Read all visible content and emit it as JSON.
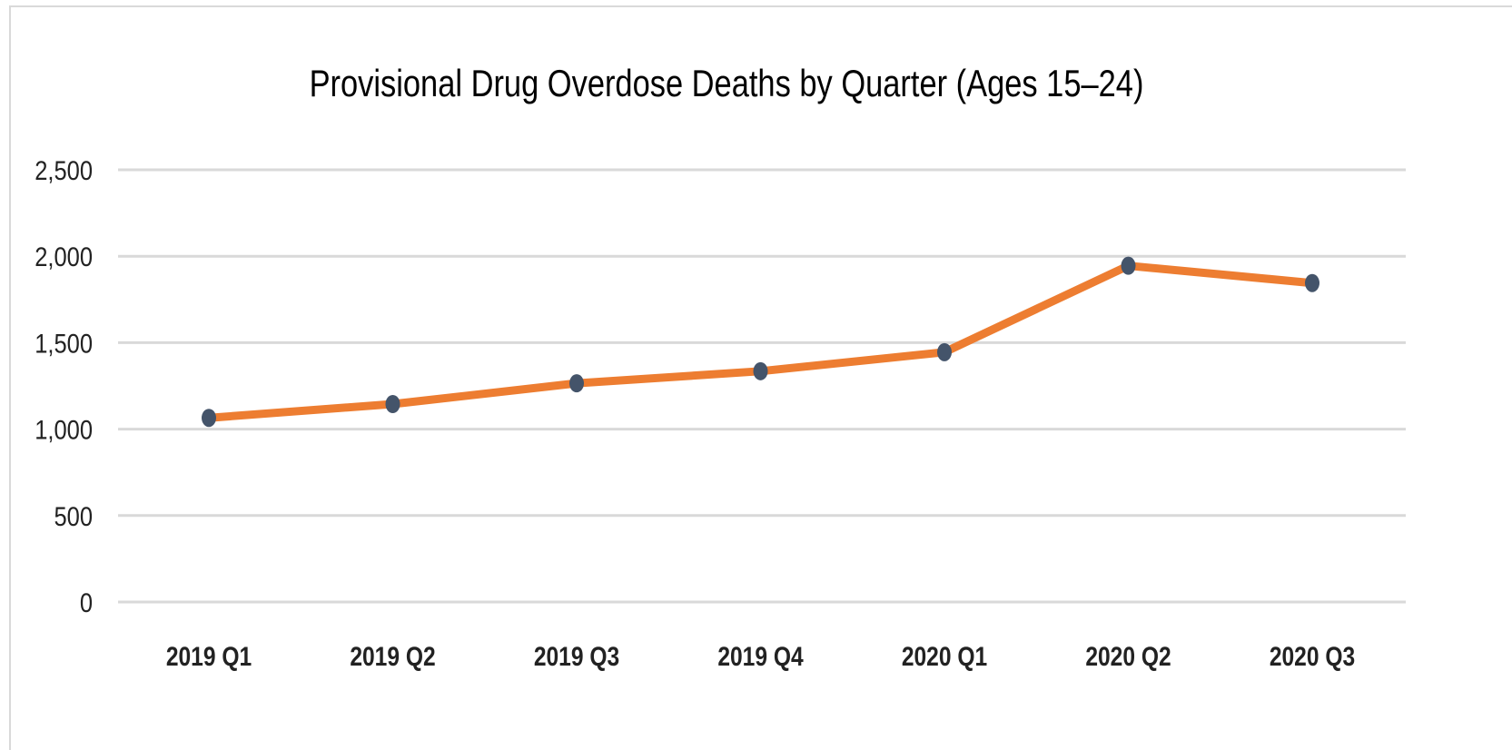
{
  "chart_data": {
    "type": "line",
    "title": "Provisional Drug Overdose Deaths by Quarter (Ages 15–24)",
    "xlabel": "",
    "ylabel": "",
    "categories": [
      "2019 Q1",
      "2019 Q2",
      "2019 Q3",
      "2019 Q4",
      "2020 Q1",
      "2020 Q2",
      "2020 Q3"
    ],
    "series": [
      {
        "values": [
          1065,
          1145,
          1265,
          1335,
          1445,
          1945,
          1845
        ],
        "color": "#ED7D31",
        "marker_color": "#44546A"
      }
    ],
    "ylim": [
      0,
      2500
    ],
    "yticks": [
      0,
      500,
      1000,
      1500,
      2000,
      2500
    ],
    "ytick_labels": [
      "0",
      "500",
      "1,000",
      "1,500",
      "2,000",
      "2,500"
    ],
    "grid": true,
    "legend": "none",
    "gridline_color": "#d9d9d9"
  }
}
